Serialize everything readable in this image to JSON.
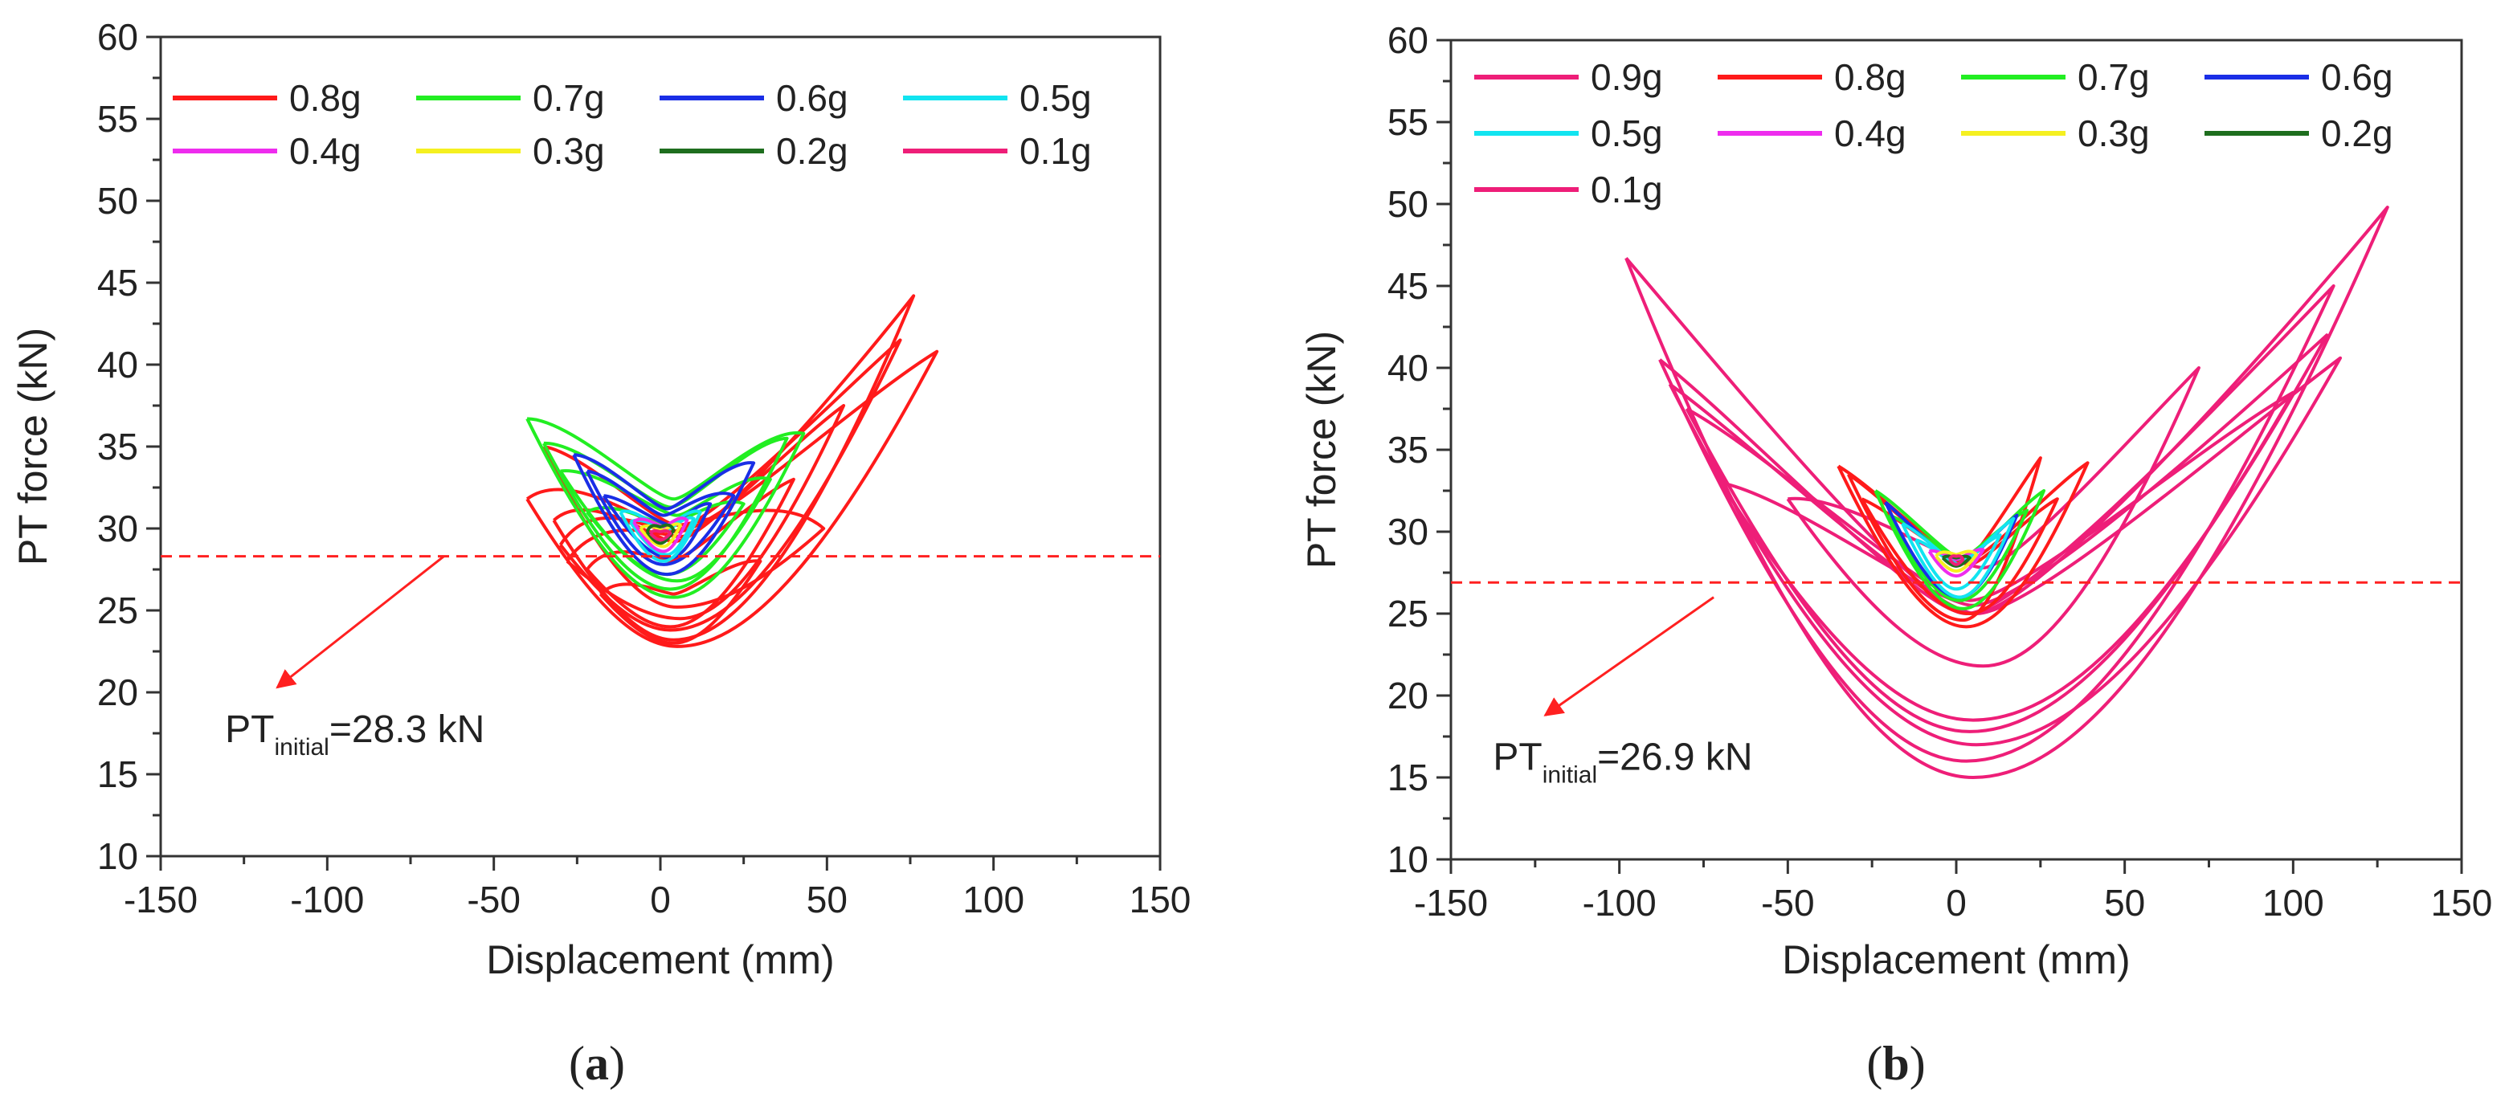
{
  "chart_data": [
    {
      "type": "line",
      "panel_caption": "(a)",
      "caption_letter": "a",
      "xlabel": "Displacement (mm)",
      "ylabel": "PT force (kN)",
      "xlim": [
        -150,
        150
      ],
      "ylim": [
        10,
        60
      ],
      "xticks": [
        -150,
        -100,
        -50,
        0,
        50,
        100,
        150
      ],
      "yticks": [
        10,
        15,
        20,
        25,
        30,
        35,
        40,
        45,
        50,
        55,
        60
      ],
      "initial_force": {
        "value": 28.3,
        "label_main": "PT",
        "label_sub": "initial",
        "label_value": "=28.3 kN",
        "arrow_from": [
          -65,
          28.3
        ],
        "arrow_to": [
          -115,
          20.3
        ],
        "color": "#ff2020"
      },
      "legend_columns": 4,
      "series": [
        {
          "name": "0.8g",
          "color": "#ff1a1a",
          "width": 4,
          "loops": [
            {
              "cx": 5,
              "cy": 22.8,
              "L": -40,
              "yL": 31.8,
              "R": 83,
              "yR": 40.8,
              "w": 7
            },
            {
              "cx": 4,
              "cy": 23.2,
              "L": -32,
              "yL": 30.5,
              "R": 76,
              "yR": 44.2,
              "w": 6
            },
            {
              "cx": 3,
              "cy": 23.8,
              "L": -30,
              "yL": 29.0,
              "R": 72,
              "yR": 41.5,
              "w": 6
            },
            {
              "cx": 6,
              "cy": 24.5,
              "L": -28,
              "yL": 28.0,
              "R": 55,
              "yR": 37.5,
              "w": 5
            },
            {
              "cx": 5,
              "cy": 25.2,
              "L": -35,
              "yL": 35.0,
              "R": 49,
              "yR": 30.0,
              "w": 5
            },
            {
              "cx": 3,
              "cy": 24.0,
              "L": -22,
              "yL": 27.5,
              "R": 40,
              "yR": 33.0,
              "w": 4
            },
            {
              "cx": 4,
              "cy": 23.0,
              "L": -18,
              "yL": 26.0,
              "R": 30,
              "yR": 28.0,
              "w": 3
            }
          ]
        },
        {
          "name": "0.7g",
          "color": "#22ee22",
          "width": 4,
          "loops": [
            {
              "cx": 4,
              "cy": 25.8,
              "L": -40,
              "yL": 36.7,
              "R": 43,
              "yR": 35.8,
              "w": 6
            },
            {
              "cx": 3,
              "cy": 26.3,
              "L": -35,
              "yL": 35.2,
              "R": 38,
              "yR": 35.5,
              "w": 5
            },
            {
              "cx": 5,
              "cy": 26.8,
              "L": -30,
              "yL": 33.5,
              "R": 33,
              "yR": 33.0,
              "w": 4
            },
            {
              "cx": 2,
              "cy": 27.2,
              "L": -22,
              "yL": 31.0,
              "R": 25,
              "yR": 31.5,
              "w": 3
            }
          ]
        },
        {
          "name": "0.6g",
          "color": "#1a2ee6",
          "width": 4,
          "loops": [
            {
              "cx": 2,
              "cy": 27.2,
              "L": -26,
              "yL": 34.5,
              "R": 28,
              "yR": 34.0,
              "w": 4
            },
            {
              "cx": 1,
              "cy": 27.8,
              "L": -22,
              "yL": 33.5,
              "R": 22,
              "yR": 32.0,
              "w": 3
            },
            {
              "cx": 3,
              "cy": 28.2,
              "L": -17,
              "yL": 32.0,
              "R": 15,
              "yR": 31.5,
              "w": 2
            }
          ]
        },
        {
          "name": "0.5g",
          "color": "#12e4f0",
          "width": 4,
          "loops": [
            {
              "cx": 1,
              "cy": 28.0,
              "L": -12,
              "yL": 31.0,
              "R": 12,
              "yR": 31.0,
              "w": 2
            },
            {
              "cx": 2,
              "cy": 28.4,
              "L": -9,
              "yL": 30.4,
              "R": 10,
              "yR": 30.6,
              "w": 1.5
            }
          ]
        },
        {
          "name": "0.4g",
          "color": "#ee2cee",
          "width": 4,
          "loops": [
            {
              "cx": 1,
              "cy": 28.6,
              "L": -8,
              "yL": 30.4,
              "R": 8,
              "yR": 30.5,
              "w": 1.5
            }
          ]
        },
        {
          "name": "0.3g",
          "color": "#f5f020",
          "width": 4,
          "loops": [
            {
              "cx": 1,
              "cy": 28.9,
              "L": -6,
              "yL": 30.0,
              "R": 6,
              "yR": 30.2,
              "w": 1
            }
          ]
        },
        {
          "name": "0.2g",
          "color": "#1e6e1e",
          "width": 4,
          "loops": [
            {
              "cx": 0,
              "cy": 29.1,
              "L": -4,
              "yL": 29.8,
              "R": 4,
              "yR": 29.9,
              "w": 1
            }
          ]
        },
        {
          "name": "0.1g",
          "color": "#ee1e78",
          "width": 4,
          "loops": [
            {
              "cx": 0,
              "cy": 29.3,
              "L": -3,
              "yL": 29.7,
              "R": 3,
              "yR": 29.7,
              "w": 0.5
            }
          ]
        }
      ]
    },
    {
      "type": "line",
      "panel_caption": "(b)",
      "caption_letter": "b",
      "xlabel": "Displacement (mm)",
      "ylabel": "PT force (kN)",
      "xlim": [
        -150,
        150
      ],
      "ylim": [
        10,
        60
      ],
      "xticks": [
        -150,
        -100,
        -50,
        0,
        50,
        100,
        150
      ],
      "yticks": [
        10,
        15,
        20,
        25,
        30,
        35,
        40,
        45,
        50,
        55,
        60
      ],
      "initial_force": {
        "value": 26.9,
        "label_main": "PT",
        "label_sub": "initial",
        "label_value": "=26.9 kN",
        "arrow_from": [
          -72,
          26.0
        ],
        "arrow_to": [
          -122,
          18.8
        ],
        "color": "#ff2020"
      },
      "legend_columns": 4,
      "series": [
        {
          "name": "0.9g",
          "color": "#ee1e78",
          "width": 4,
          "loops": [
            {
              "cx": 5,
              "cy": 15.0,
              "L": -98,
              "yL": 46.7,
              "R": 128,
              "yR": 49.8,
              "w": 10
            },
            {
              "cx": 3,
              "cy": 16.0,
              "L": -88,
              "yL": 40.5,
              "R": 112,
              "yR": 45.0,
              "w": 9
            },
            {
              "cx": 6,
              "cy": 17.0,
              "L": -85,
              "yL": 39.0,
              "R": 114,
              "yR": 40.6,
              "w": 8
            },
            {
              "cx": 4,
              "cy": 17.8,
              "L": -80,
              "yL": 37.5,
              "R": 100,
              "yR": 38.5,
              "w": 8
            },
            {
              "cx": 5,
              "cy": 18.5,
              "L": -70,
              "yL": 33.0,
              "R": 110,
              "yR": 42.0,
              "w": 7
            },
            {
              "cx": 8,
              "cy": 21.8,
              "L": -50,
              "yL": 32.0,
              "R": 72,
              "yR": 40.0,
              "w": 6
            }
          ]
        },
        {
          "name": "0.8g",
          "color": "#ff1a1a",
          "width": 4,
          "loops": [
            {
              "cx": 3,
              "cy": 24.2,
              "L": -35,
              "yL": 34.0,
              "R": 39,
              "yR": 34.2,
              "w": 4
            },
            {
              "cx": 2,
              "cy": 24.6,
              "L": -32,
              "yL": 33.5,
              "R": 25,
              "yR": 34.5,
              "w": 3.5
            },
            {
              "cx": 4,
              "cy": 25.0,
              "L": -28,
              "yL": 32.0,
              "R": 30,
              "yR": 32.0,
              "w": 3
            }
          ]
        },
        {
          "name": "0.7g",
          "color": "#22ee22",
          "width": 4,
          "loops": [
            {
              "cx": 2,
              "cy": 25.3,
              "L": -24,
              "yL": 32.5,
              "R": 26,
              "yR": 32.5,
              "w": 3
            },
            {
              "cx": 1,
              "cy": 25.8,
              "L": -20,
              "yL": 31.0,
              "R": 21,
              "yR": 31.3,
              "w": 2.5
            }
          ]
        },
        {
          "name": "0.6g",
          "color": "#1a2ee6",
          "width": 4,
          "loops": [
            {
              "cx": 1,
              "cy": 26.0,
              "L": -21,
              "yL": 31.8,
              "R": 18,
              "yR": 31.0,
              "w": 2
            }
          ]
        },
        {
          "name": "0.5g",
          "color": "#12e4f0",
          "width": 4,
          "loops": [
            {
              "cx": 1,
              "cy": 26.0,
              "L": -16,
              "yL": 30.5,
              "R": 17,
              "yR": 30.8,
              "w": 2
            },
            {
              "cx": 0,
              "cy": 26.5,
              "L": -12,
              "yL": 29.5,
              "R": 13,
              "yR": 29.8,
              "w": 1.5
            }
          ]
        },
        {
          "name": "0.4g",
          "color": "#ee2cee",
          "width": 4,
          "loops": [
            {
              "cx": 0,
              "cy": 27.3,
              "L": -8,
              "yL": 28.8,
              "R": 8,
              "yR": 28.9,
              "w": 1
            }
          ]
        },
        {
          "name": "0.3g",
          "color": "#f5f020",
          "width": 4,
          "loops": [
            {
              "cx": 0,
              "cy": 27.6,
              "L": -6,
              "yL": 28.5,
              "R": 6,
              "yR": 28.6,
              "w": 1
            }
          ]
        },
        {
          "name": "0.2g",
          "color": "#1e6e1e",
          "width": 4,
          "loops": [
            {
              "cx": 0,
              "cy": 27.9,
              "L": -4,
              "yL": 28.4,
              "R": 4,
              "yR": 28.4,
              "w": 0.5
            }
          ]
        },
        {
          "name": "0.1g",
          "color": "#ee1e78",
          "width": 4,
          "loops": [
            {
              "cx": 0,
              "cy": 28.0,
              "L": -2,
              "yL": 28.3,
              "R": 2,
              "yR": 28.3,
              "w": 0.5
            }
          ]
        }
      ]
    }
  ]
}
